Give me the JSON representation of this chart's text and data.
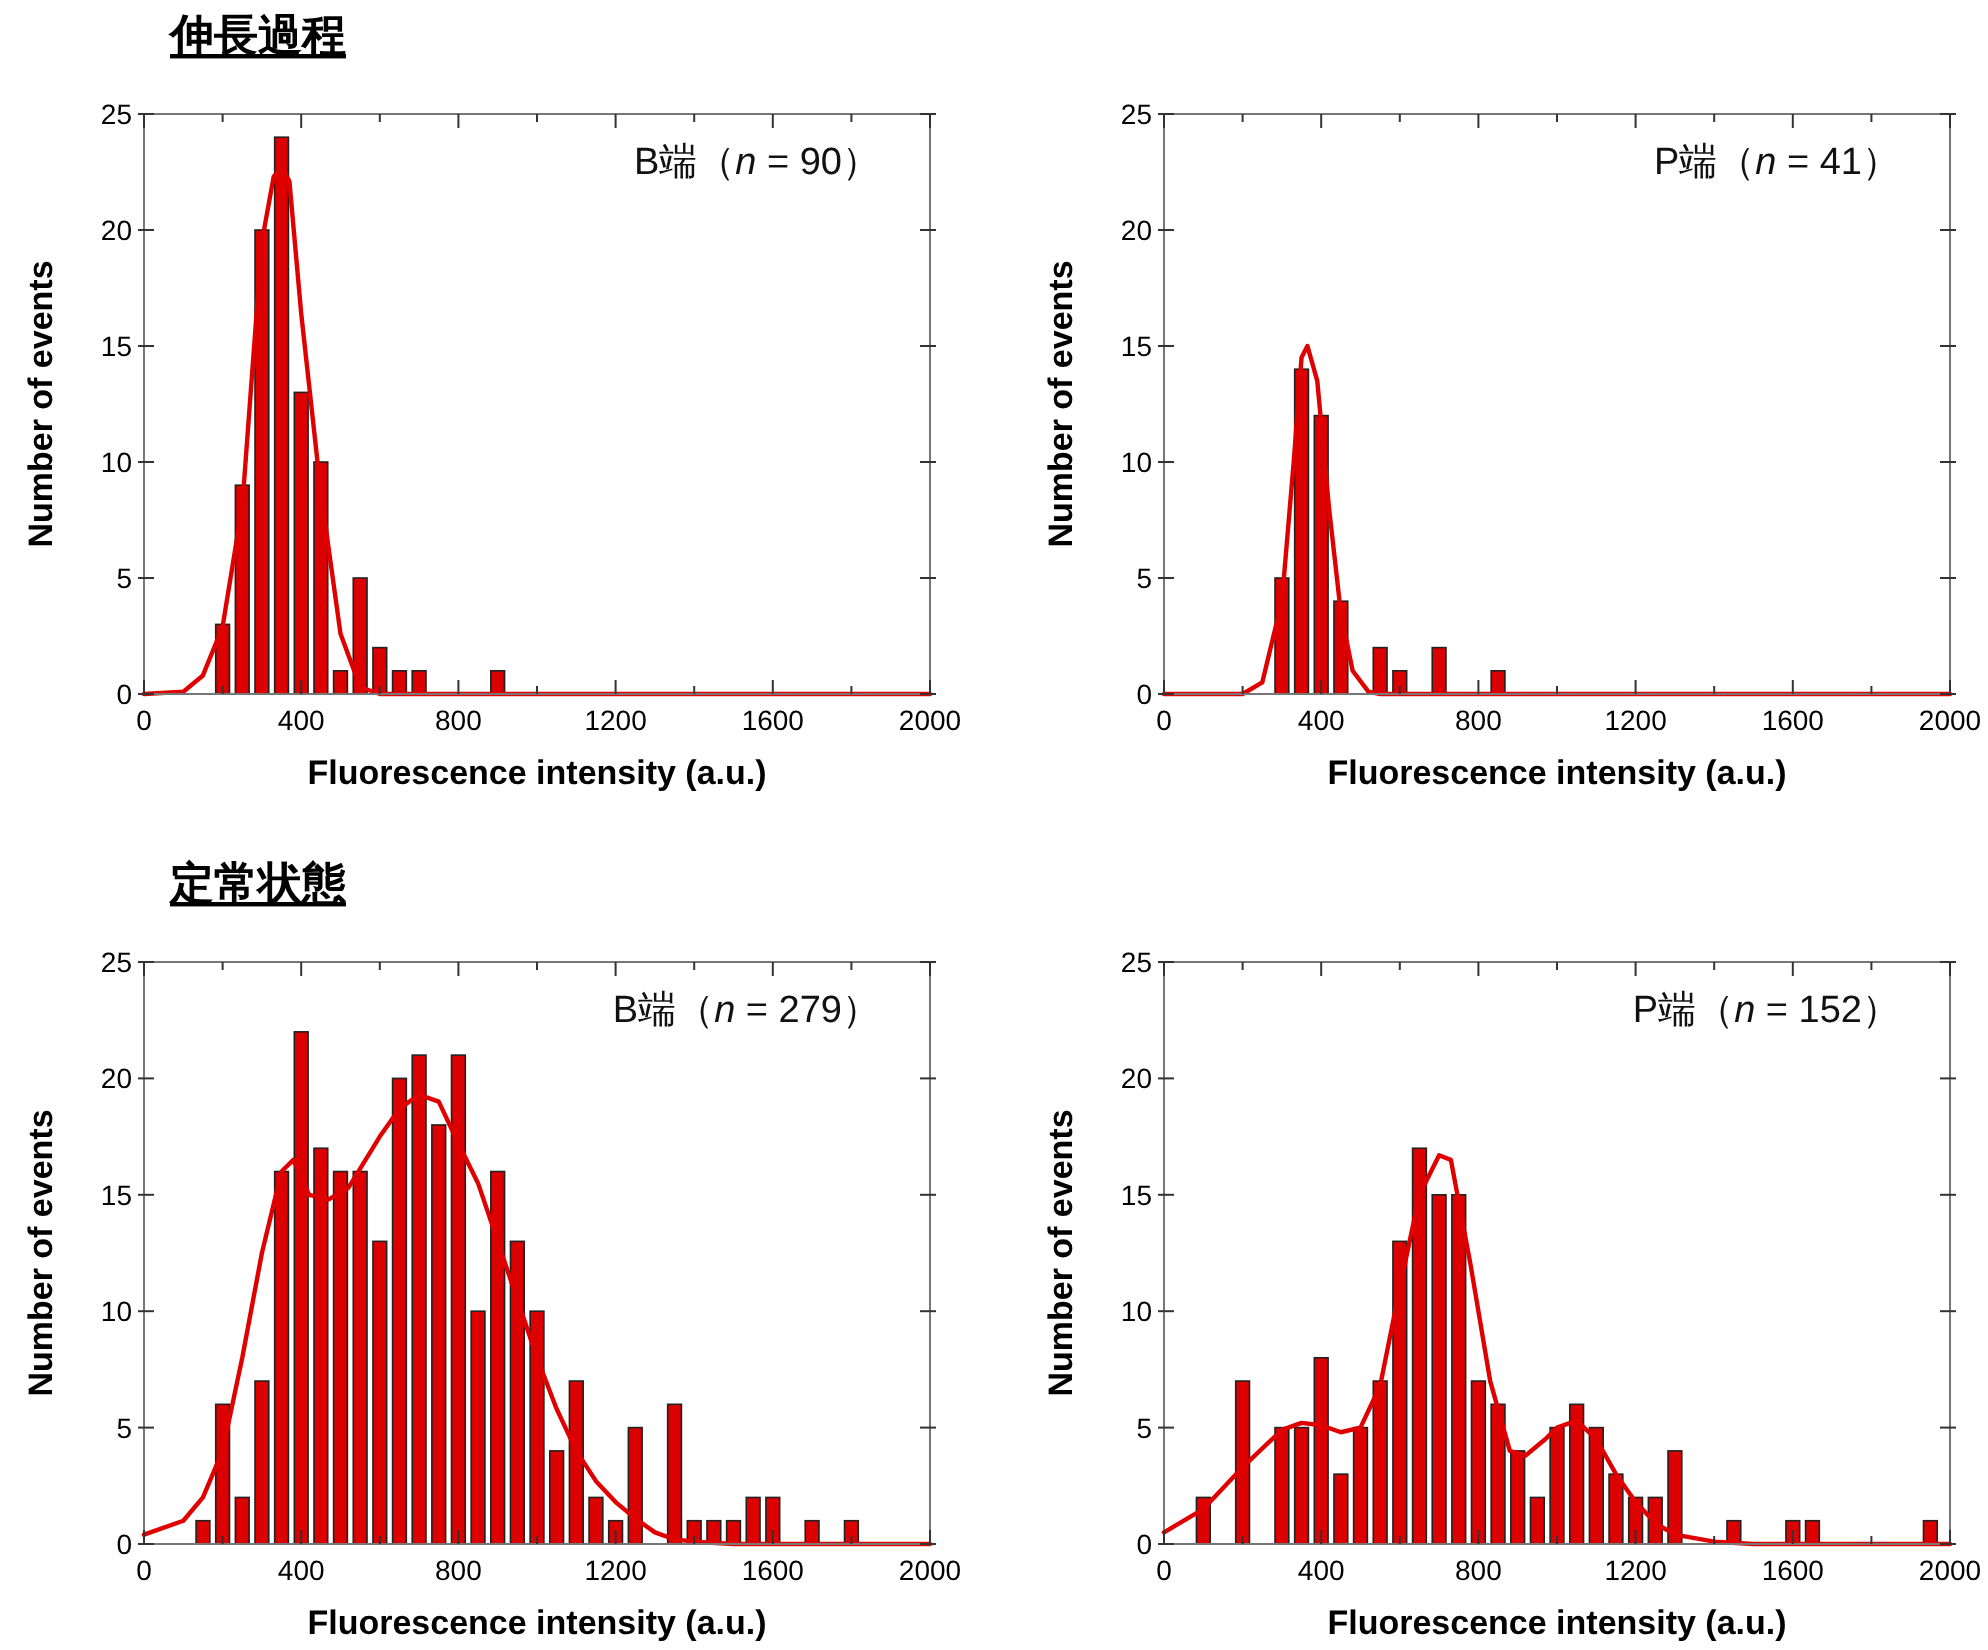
{
  "chart_data": [
    {
      "type": "bar",
      "title": "伸長過程",
      "xlabel": "Fluorescence intensity (a.u.)",
      "ylabel": "Number of events",
      "xlim": [
        0,
        2000
      ],
      "xticks": [
        0,
        {
          "value": 200,
          "label": null
        },
        400,
        {
          "value": 600,
          "label": null
        },
        800,
        {
          "value": 1000,
          "label": null
        },
        1200,
        {
          "value": 1400,
          "label": null
        },
        1600,
        {
          "value": 1800,
          "label": null
        },
        2000
      ],
      "ylim": [
        0,
        25
      ],
      "yticks": [
        0,
        5,
        10,
        15,
        20,
        25
      ],
      "grid": false,
      "annotations": [
        "B端（n = 90）"
      ],
      "series": [
        {
          "color": "#dd0000",
          "x": [
            200,
            250,
            300,
            350,
            400,
            450,
            500,
            550,
            600,
            650,
            700,
            900
          ],
          "values": [
            3,
            9,
            20,
            24,
            13,
            10,
            1,
            5,
            2,
            1,
            1,
            1
          ]
        },
        {
          "type": "line",
          "color": "#e00000",
          "x": [
            0,
            100,
            150,
            200,
            250,
            300,
            330,
            350,
            370,
            400,
            450,
            500,
            550,
            600,
            2000
          ],
          "values": [
            0,
            0.1,
            0.8,
            2.9,
            8.1,
            19.5,
            22.3,
            22.7,
            22.1,
            16.4,
            8.7,
            2.6,
            0.3,
            0,
            0
          ]
        }
      ]
    },
    {
      "type": "bar",
      "xlabel": "Fluorescence intensity (a.u.)",
      "ylabel": "Number of events",
      "xlim": [
        0,
        2000
      ],
      "xticks": [
        0,
        {
          "value": 200,
          "label": null
        },
        400,
        {
          "value": 600,
          "label": null
        },
        800,
        {
          "value": 1000,
          "label": null
        },
        1200,
        {
          "value": 1400,
          "label": null
        },
        1600,
        {
          "value": 1800,
          "label": null
        },
        2000
      ],
      "ylim": [
        0,
        25
      ],
      "yticks": [
        0,
        5,
        10,
        15,
        20,
        25
      ],
      "grid": false,
      "annotations": [
        "P端（n = 41）"
      ],
      "series": [
        {
          "color": "#dd0000",
          "x": [
            300,
            350,
            400,
            450,
            550,
            600,
            700,
            850
          ],
          "values": [
            5,
            14,
            12,
            4,
            2,
            1,
            2,
            1
          ]
        },
        {
          "type": "line",
          "color": "#e00000",
          "x": [
            0,
            200,
            250,
            300,
            330,
            350,
            365,
            390,
            420,
            450,
            480,
            520,
            550,
            2000
          ],
          "values": [
            0,
            0,
            0.5,
            4,
            10,
            14.5,
            15,
            13.5,
            8,
            3.5,
            1,
            0.1,
            0,
            0
          ]
        }
      ]
    },
    {
      "type": "bar",
      "title": "定常状態",
      "xlabel": "Fluorescence intensity (a.u.)",
      "ylabel": "Number of events",
      "xlim": [
        0,
        2000
      ],
      "xticks": [
        0,
        {
          "value": 200,
          "label": null
        },
        400,
        {
          "value": 600,
          "label": null
        },
        800,
        {
          "value": 1000,
          "label": null
        },
        1200,
        {
          "value": 1400,
          "label": null
        },
        1600,
        {
          "value": 1800,
          "label": null
        },
        2000
      ],
      "ylim": [
        0,
        25
      ],
      "yticks": [
        0,
        5,
        10,
        15,
        20,
        25
      ],
      "grid": false,
      "annotations": [
        "B端（n = 279）"
      ],
      "series": [
        {
          "color": "#dd0000",
          "x": [
            150,
            200,
            250,
            300,
            350,
            400,
            450,
            500,
            550,
            600,
            650,
            700,
            750,
            800,
            850,
            900,
            950,
            1000,
            1050,
            1100,
            1150,
            1200,
            1250,
            1350,
            1400,
            1450,
            1500,
            1550,
            1600,
            1700,
            1800
          ],
          "values": [
            1,
            6,
            2,
            7,
            16,
            22,
            17,
            16,
            16,
            13,
            20,
            21,
            18,
            21,
            10,
            16,
            13,
            10,
            4,
            7,
            2,
            1,
            5,
            6,
            1,
            1,
            1,
            2,
            2,
            1,
            1
          ]
        },
        {
          "type": "line",
          "color": "#e00000",
          "x": [
            0,
            100,
            150,
            200,
            250,
            300,
            350,
            380,
            420,
            470,
            520,
            600,
            650,
            700,
            750,
            800,
            850,
            900,
            950,
            1000,
            1050,
            1100,
            1150,
            1200,
            1250,
            1300,
            1350,
            1400,
            1500,
            2000
          ],
          "values": [
            0.4,
            1,
            2,
            4,
            8,
            12.5,
            16,
            16.5,
            15,
            14.8,
            15.3,
            17.5,
            18.7,
            19.3,
            19,
            17.2,
            15.5,
            13,
            10.5,
            8,
            5.8,
            4,
            2.7,
            1.8,
            1.1,
            0.5,
            0.2,
            0.1,
            0,
            0
          ]
        }
      ]
    },
    {
      "type": "bar",
      "xlabel": "Fluorescence intensity (a.u.)",
      "ylabel": "Number of events",
      "xlim": [
        0,
        2000
      ],
      "xticks": [
        0,
        {
          "value": 200,
          "label": null
        },
        400,
        {
          "value": 600,
          "label": null
        },
        800,
        {
          "value": 1000,
          "label": null
        },
        1200,
        {
          "value": 1400,
          "label": null
        },
        1600,
        {
          "value": 1800,
          "label": null
        },
        2000
      ],
      "ylim": [
        0,
        25
      ],
      "yticks": [
        0,
        5,
        10,
        15,
        20,
        25
      ],
      "grid": false,
      "annotations": [
        "P端（n = 152）"
      ],
      "series": [
        {
          "color": "#dd0000",
          "x": [
            100,
            200,
            300,
            350,
            400,
            450,
            500,
            550,
            600,
            650,
            700,
            750,
            800,
            850,
            900,
            950,
            1000,
            1050,
            1100,
            1150,
            1200,
            1250,
            1300,
            1450,
            1600,
            1650,
            1950
          ],
          "values": [
            2,
            7,
            5,
            5,
            8,
            3,
            5,
            7,
            13,
            17,
            15,
            15,
            7,
            6,
            4,
            2,
            5,
            6,
            5,
            3,
            2,
            2,
            4,
            1,
            1,
            1,
            1
          ]
        },
        {
          "type": "line",
          "color": "#e00000",
          "x": [
            0,
            100,
            200,
            300,
            350,
            400,
            450,
            500,
            550,
            600,
            650,
            700,
            730,
            780,
            830,
            880,
            920,
            970,
            1000,
            1050,
            1100,
            1150,
            1200,
            1250,
            1300,
            1400,
            1500,
            2000
          ],
          "values": [
            0.5,
            1.5,
            3.3,
            4.9,
            5.2,
            5.1,
            4.8,
            5,
            6.8,
            11,
            15,
            16.7,
            16.5,
            12,
            7,
            4,
            3.8,
            4.5,
            5,
            5.3,
            4.5,
            3,
            1.8,
            0.9,
            0.4,
            0.1,
            0,
            0
          ]
        }
      ]
    }
  ]
}
